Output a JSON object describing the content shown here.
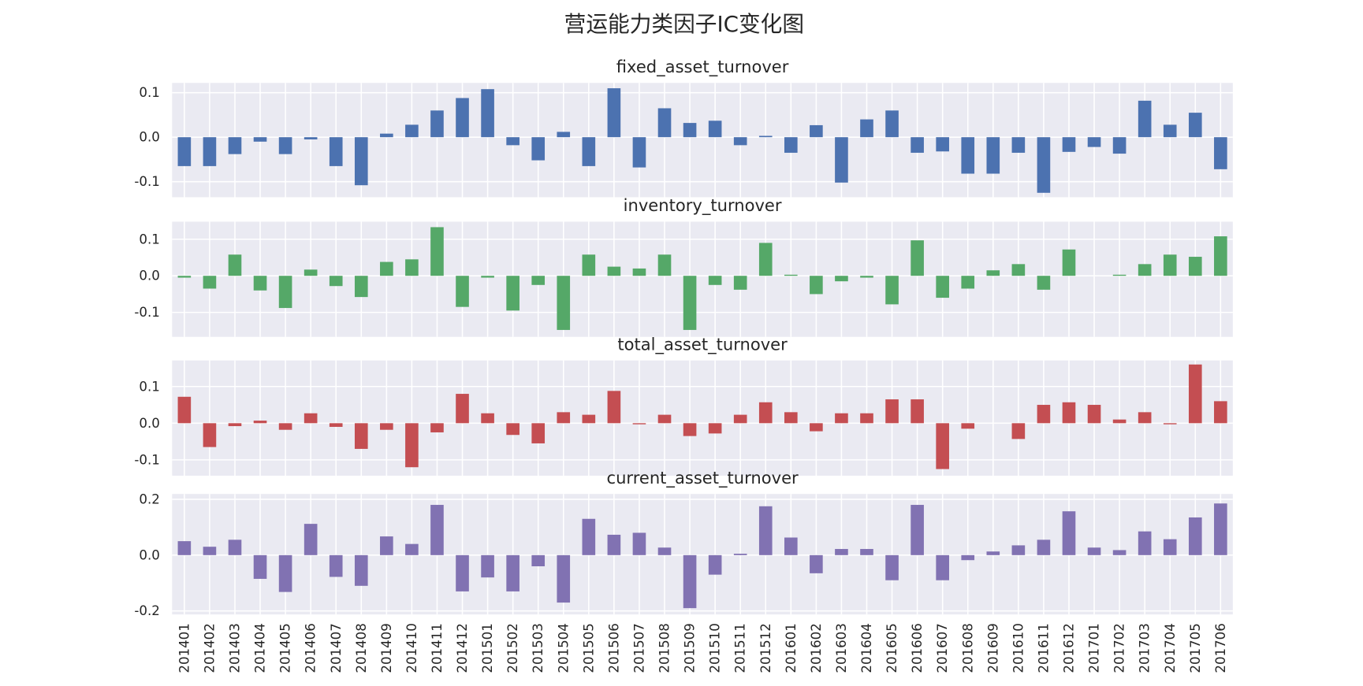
{
  "chart_data": {
    "type": "bar",
    "title": "营运能力类因子IC变化图",
    "categories": [
      "201401",
      "201402",
      "201403",
      "201404",
      "201405",
      "201406",
      "201407",
      "201408",
      "201409",
      "201410",
      "201411",
      "201412",
      "201501",
      "201502",
      "201503",
      "201504",
      "201505",
      "201506",
      "201507",
      "201508",
      "201509",
      "201510",
      "201511",
      "201512",
      "201601",
      "201602",
      "201603",
      "201604",
      "201605",
      "201606",
      "201607",
      "201608",
      "201609",
      "201610",
      "201611",
      "201612",
      "201701",
      "201702",
      "201703",
      "201704",
      "201705",
      "201706"
    ],
    "subplots": [
      {
        "title": "fixed_asset_turnover",
        "color": "#4c72b0",
        "ylim": [
          -0.135,
          0.122
        ],
        "yticks": [
          0.1,
          0.0,
          -0.1
        ],
        "ytick_labels": [
          "0.1",
          "0.0",
          "-0.1"
        ],
        "values": [
          -0.065,
          -0.065,
          -0.038,
          -0.01,
          -0.038,
          -0.005,
          -0.065,
          -0.108,
          0.008,
          0.028,
          0.06,
          0.088,
          0.108,
          -0.018,
          -0.052,
          0.012,
          -0.065,
          0.11,
          -0.068,
          0.065,
          0.032,
          0.037,
          -0.018,
          0.003,
          -0.035,
          0.027,
          -0.102,
          0.04,
          0.06,
          -0.035,
          -0.032,
          -0.082,
          -0.082,
          -0.035,
          -0.125,
          -0.033,
          -0.022,
          -0.037,
          0.082,
          0.028,
          0.055,
          -0.072
        ]
      },
      {
        "title": "inventory_turnover",
        "color": "#55a868",
        "ylim": [
          -0.167,
          0.148
        ],
        "yticks": [
          0.1,
          0.0,
          -0.1
        ],
        "ytick_labels": [
          "0.1",
          "0.0",
          "-0.1"
        ],
        "values": [
          -0.005,
          -0.035,
          0.058,
          -0.04,
          -0.088,
          0.017,
          -0.028,
          -0.058,
          0.038,
          0.045,
          0.133,
          -0.085,
          -0.005,
          -0.095,
          -0.025,
          -0.148,
          0.058,
          0.025,
          0.02,
          0.058,
          -0.148,
          -0.025,
          -0.038,
          0.09,
          0.003,
          -0.05,
          -0.015,
          -0.005,
          -0.078,
          0.097,
          -0.06,
          -0.035,
          0.015,
          0.032,
          -0.038,
          0.072,
          0.0,
          0.003,
          0.032,
          0.058,
          0.052,
          0.108
        ]
      },
      {
        "title": "total_asset_turnover",
        "color": "#c44e52",
        "ylim": [
          -0.143,
          0.171
        ],
        "yticks": [
          0.1,
          0.0,
          -0.1
        ],
        "ytick_labels": [
          "0.1",
          "0.0",
          "-0.1"
        ],
        "values": [
          0.072,
          -0.065,
          -0.008,
          0.007,
          -0.018,
          0.027,
          -0.01,
          -0.07,
          -0.018,
          -0.12,
          -0.025,
          0.08,
          0.027,
          -0.032,
          -0.055,
          0.03,
          0.023,
          0.088,
          -0.003,
          0.023,
          -0.035,
          -0.028,
          0.023,
          0.057,
          0.03,
          -0.022,
          0.027,
          0.027,
          0.065,
          0.065,
          -0.125,
          -0.015,
          0.0,
          -0.043,
          0.05,
          0.057,
          0.05,
          0.01,
          0.03,
          -0.003,
          0.16,
          0.06
        ]
      },
      {
        "title": "current_asset_turnover",
        "color": "#8172b2",
        "ylim": [
          -0.2125,
          0.219
        ],
        "yticks": [
          0.2,
          0.0,
          -0.2
        ],
        "ytick_labels": [
          "0.2",
          "0.0",
          "-0.2"
        ],
        "values": [
          0.05,
          0.03,
          0.055,
          -0.085,
          -0.132,
          0.112,
          -0.078,
          -0.11,
          0.067,
          0.04,
          0.18,
          -0.13,
          -0.08,
          -0.13,
          -0.04,
          -0.17,
          0.13,
          0.073,
          0.08,
          0.027,
          -0.19,
          -0.07,
          0.005,
          0.175,
          0.063,
          -0.065,
          0.022,
          0.022,
          -0.09,
          0.18,
          -0.09,
          -0.018,
          0.013,
          0.035,
          0.055,
          0.157,
          0.027,
          0.018,
          0.085,
          0.057,
          0.135,
          0.185
        ]
      }
    ],
    "xlabel": "",
    "ylabel": "",
    "grid": true,
    "legend": "none"
  }
}
